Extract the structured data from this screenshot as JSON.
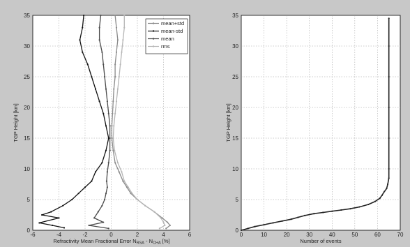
{
  "chart_data": [
    {
      "type": "line",
      "title": "",
      "xlabel": "Refractivity Mean Fractional Error N",
      "xlabel_sub1": "RSA",
      "xlabel_mid": " - N",
      "xlabel_sub2": "CHA",
      "xlabel_tail": " [%]",
      "ylabel": "TGP Height [km]",
      "xlim": [
        -6,
        6
      ],
      "ylim": [
        0,
        35
      ],
      "xticks": [
        -6,
        -4,
        -2,
        0,
        2,
        4,
        6
      ],
      "yticks": [
        0,
        5,
        10,
        15,
        20,
        25,
        30,
        35
      ],
      "grid": true,
      "legend_position": "top-right",
      "series": [
        {
          "name": "mean+std",
          "color": "#8a8a8a",
          "marker": "dot",
          "points": [
            [
              0.3,
              35
            ],
            [
              0.4,
              33
            ],
            [
              0.5,
              31
            ],
            [
              0.4,
              29
            ],
            [
              0.3,
              27
            ],
            [
              0.3,
              25
            ],
            [
              0.2,
              23
            ],
            [
              0.15,
              21
            ],
            [
              0.1,
              19
            ],
            [
              0.05,
              17
            ],
            [
              0.05,
              15
            ],
            [
              0.15,
              13
            ],
            [
              0.3,
              11
            ],
            [
              0.6,
              9.5
            ],
            [
              0.9,
              8
            ],
            [
              1.2,
              7
            ],
            [
              1.5,
              6
            ],
            [
              2.0,
              5
            ],
            [
              2.6,
              4
            ],
            [
              3.3,
              3
            ],
            [
              3.9,
              2
            ],
            [
              4.3,
              1.3
            ],
            [
              4.5,
              0.8
            ],
            [
              4.2,
              0.3
            ]
          ]
        },
        {
          "name": "mean-std",
          "color": "#111111",
          "marker": "dot",
          "points": [
            [
              -2.1,
              35
            ],
            [
              -2.2,
              33
            ],
            [
              -2.4,
              31
            ],
            [
              -2.2,
              29
            ],
            [
              -1.8,
              27
            ],
            [
              -1.5,
              25
            ],
            [
              -1.2,
              23
            ],
            [
              -0.9,
              21
            ],
            [
              -0.6,
              19
            ],
            [
              -0.4,
              17
            ],
            [
              -0.2,
              15
            ],
            [
              -0.4,
              13
            ],
            [
              -0.7,
              11
            ],
            [
              -1.2,
              9.5
            ],
            [
              -1.5,
              8
            ],
            [
              -2.0,
              7
            ],
            [
              -2.5,
              6
            ],
            [
              -3.0,
              5
            ],
            [
              -3.7,
              4
            ],
            [
              -4.6,
              3
            ],
            [
              -5.3,
              2.5
            ],
            [
              -4.0,
              2
            ],
            [
              -5.5,
              1.2
            ],
            [
              -4.5,
              0.8
            ],
            [
              -3.6,
              0.4
            ]
          ]
        },
        {
          "name": "mean",
          "color": "#4a4a4a",
          "marker": "dot",
          "points": [
            [
              -0.8,
              35
            ],
            [
              -0.9,
              33
            ],
            [
              -0.9,
              31
            ],
            [
              -0.7,
              29
            ],
            [
              -0.6,
              27
            ],
            [
              -0.5,
              25
            ],
            [
              -0.4,
              23
            ],
            [
              -0.3,
              21
            ],
            [
              -0.2,
              19
            ],
            [
              -0.1,
              17
            ],
            [
              -0.1,
              15
            ],
            [
              -0.1,
              13
            ],
            [
              -0.2,
              11
            ],
            [
              -0.3,
              9.5
            ],
            [
              -0.35,
              8
            ],
            [
              -0.3,
              7
            ],
            [
              -0.4,
              6
            ],
            [
              -0.5,
              5
            ],
            [
              -0.7,
              4
            ],
            [
              -1.0,
              3
            ],
            [
              -1.3,
              2
            ],
            [
              -0.6,
              1.3
            ],
            [
              -1.7,
              0.8
            ],
            [
              -0.2,
              0.3
            ]
          ]
        },
        {
          "name": "rms",
          "color": "#b5b5b5",
          "marker": "dot",
          "points": [
            [
              1.0,
              35
            ],
            [
              1.0,
              33
            ],
            [
              0.9,
              31
            ],
            [
              0.8,
              29
            ],
            [
              0.7,
              27
            ],
            [
              0.6,
              25
            ],
            [
              0.5,
              23
            ],
            [
              0.4,
              21
            ],
            [
              0.3,
              19
            ],
            [
              0.2,
              17
            ],
            [
              0.15,
              15
            ],
            [
              0.25,
              13
            ],
            [
              0.5,
              11
            ],
            [
              0.8,
              9.5
            ],
            [
              1.0,
              8
            ],
            [
              1.3,
              7
            ],
            [
              1.6,
              6
            ],
            [
              2.0,
              5
            ],
            [
              2.6,
              4
            ],
            [
              3.3,
              3
            ],
            [
              3.8,
              2
            ],
            [
              4.0,
              1.3
            ],
            [
              4.1,
              0.8
            ],
            [
              3.7,
              0.3
            ]
          ]
        }
      ]
    },
    {
      "type": "line",
      "title": "",
      "xlabel": "Number of events",
      "ylabel": "TGP Height [km]",
      "xlim": [
        0,
        70
      ],
      "ylim": [
        0,
        35
      ],
      "xticks": [
        0,
        10,
        20,
        30,
        40,
        50,
        60,
        70
      ],
      "yticks": [
        0,
        5,
        10,
        15,
        20,
        25,
        30,
        35
      ],
      "grid": true,
      "series": [
        {
          "color": "#222222",
          "points": [
            [
              0,
              0
            ],
            [
              3,
              0.3
            ],
            [
              6,
              0.6
            ],
            [
              10,
              0.9
            ],
            [
              14,
              1.2
            ],
            [
              18,
              1.5
            ],
            [
              22,
              1.8
            ],
            [
              25,
              2.1
            ],
            [
              28,
              2.4
            ],
            [
              32,
              2.7
            ],
            [
              36,
              2.9
            ],
            [
              40,
              3.1
            ],
            [
              44,
              3.3
            ],
            [
              48,
              3.5
            ],
            [
              52,
              3.8
            ],
            [
              56,
              4.2
            ],
            [
              59,
              4.7
            ],
            [
              61,
              5.2
            ],
            [
              62,
              5.7
            ],
            [
              63,
              6.3
            ],
            [
              64,
              6.8
            ],
            [
              64.5,
              7.5
            ],
            [
              65,
              8.5
            ],
            [
              65,
              10
            ],
            [
              65,
              15
            ],
            [
              65,
              20
            ],
            [
              65,
              25
            ],
            [
              65,
              30
            ],
            [
              65,
              34.5
            ]
          ]
        }
      ]
    }
  ]
}
